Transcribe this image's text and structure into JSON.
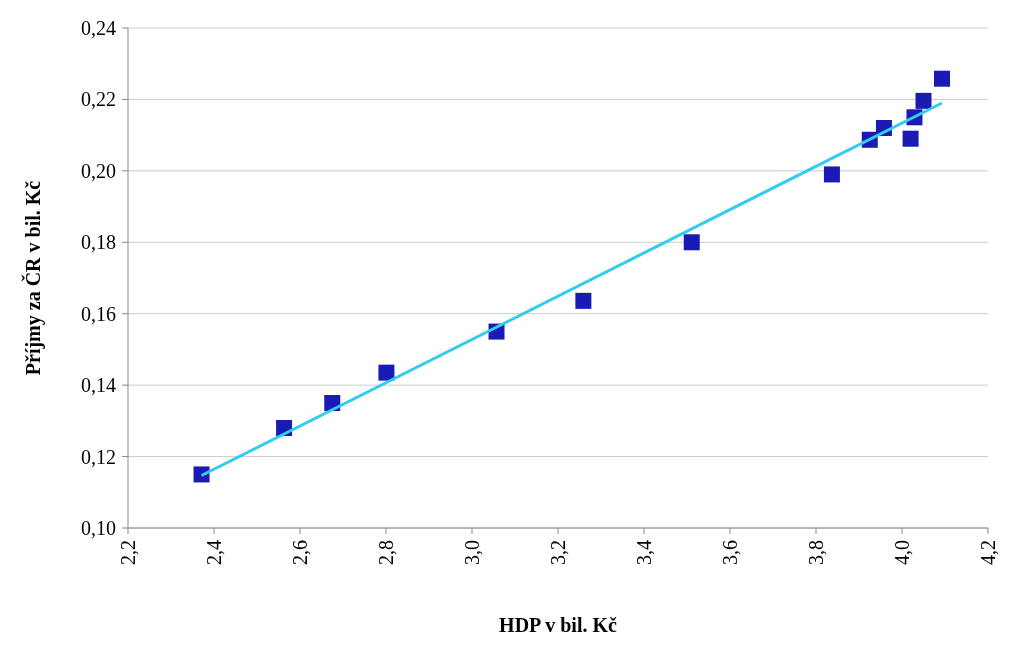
{
  "chart_data": {
    "type": "scatter",
    "xlabel": "HDP v bil. Kč",
    "ylabel": "Příjmy za ČR v bil. Kč",
    "grid": "y",
    "xlim": [
      2.2,
      4.2
    ],
    "xticks": [
      {
        "value": 2.2,
        "label": "2,2"
      },
      {
        "value": 2.4,
        "label": "2,4"
      },
      {
        "value": 2.6,
        "label": "2,6"
      },
      {
        "value": 2.8,
        "label": "2,8"
      },
      {
        "value": 3.0,
        "label": "3,0"
      },
      {
        "value": 3.2,
        "label": "3,2"
      },
      {
        "value": 3.4,
        "label": "3,4"
      },
      {
        "value": 3.6,
        "label": "3,6"
      },
      {
        "value": 3.8,
        "label": "3,8"
      },
      {
        "value": 4.0,
        "label": "4,0"
      },
      {
        "value": 4.2,
        "label": "4,2"
      }
    ],
    "ylim": [
      0.1,
      0.24
    ],
    "yticks": [
      {
        "value": 0.1,
        "label": "0,10"
      },
      {
        "value": 0.12,
        "label": "0,12"
      },
      {
        "value": 0.14,
        "label": "0,14"
      },
      {
        "value": 0.16,
        "label": "0,16"
      },
      {
        "value": 0.18,
        "label": "0,18"
      },
      {
        "value": 0.2,
        "label": "0,20"
      },
      {
        "value": 0.22,
        "label": "0,22"
      },
      {
        "value": 0.24,
        "label": "0,24"
      }
    ],
    "series": [
      {
        "marker": "square",
        "color": "#1a1ab4",
        "x": [
          2.371,
          2.563,
          2.675,
          2.801,
          3.057,
          3.259,
          3.511,
          3.837,
          3.925,
          3.958,
          4.02,
          4.029,
          4.05,
          4.093
        ],
        "values": [
          0.115,
          0.128,
          0.135,
          0.1435,
          0.155,
          0.1636,
          0.18,
          0.199,
          0.2087,
          0.212,
          0.209,
          0.215,
          0.2196,
          0.2258
        ]
      },
      {
        "type": "line",
        "marker": "none",
        "color": "#33ccee",
        "x": [
          2.371,
          4.093
        ],
        "values": [
          0.1147,
          0.219
        ]
      }
    ]
  }
}
